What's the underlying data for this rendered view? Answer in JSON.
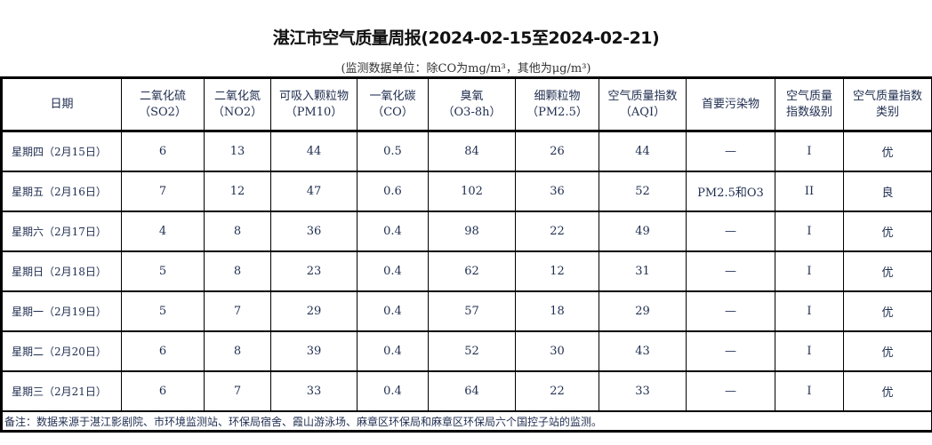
{
  "title": "湛江市空气质量周报(2024-02-15至2024-02-21)",
  "unit_note": "(监测数据单位：除CO为mg/m³，其他为μg/m³)",
  "headers": [
    [
      "日期",
      ""
    ],
    [
      "二氧化硫",
      "（SO2）"
    ],
    [
      "二氧化氮",
      "（NO2）"
    ],
    [
      "可吸入颗粒物",
      "（PM10）"
    ],
    [
      "一氧化碳",
      "（CO）"
    ],
    [
      "臭氧",
      "（O3-8h）"
    ],
    [
      "细颗粒物",
      "（PM2.5）"
    ],
    [
      "空气质量指数",
      "（AQI）"
    ],
    [
      "首要污染物",
      ""
    ],
    [
      "空气质量",
      "指数级别"
    ],
    [
      "空气质量指数",
      "类别"
    ]
  ],
  "rows": [
    [
      "星期四（2月15日）",
      "6",
      "13",
      "44",
      "0.5",
      "84",
      "26",
      "44",
      "—",
      "I",
      "优"
    ],
    [
      "星期五（2月16日）",
      "7",
      "12",
      "47",
      "0.6",
      "102",
      "36",
      "52",
      "PM2.5和O3",
      "II",
      "良"
    ],
    [
      "星期六（2月17日）",
      "4",
      "8",
      "36",
      "0.4",
      "98",
      "22",
      "49",
      "—",
      "I",
      "优"
    ],
    [
      "星期日（2月18日）",
      "5",
      "8",
      "23",
      "0.4",
      "62",
      "12",
      "31",
      "—",
      "I",
      "优"
    ],
    [
      "星期一（2月19日）",
      "5",
      "7",
      "29",
      "0.4",
      "57",
      "18",
      "29",
      "—",
      "I",
      "优"
    ],
    [
      "星期二（2月20日）",
      "6",
      "8",
      "39",
      "0.4",
      "52",
      "30",
      "43",
      "—",
      "I",
      "优"
    ],
    [
      "星期三（2月21日）",
      "6",
      "7",
      "33",
      "0.4",
      "64",
      "22",
      "33",
      "—",
      "I",
      "优"
    ]
  ],
  "footnote": "备注：数据来源于湛江影剧院、市环境监测站、环保局宿舍、霞山游泳场、麻章区环保局和麻章区环保局六个国控子站的监测。"
}
